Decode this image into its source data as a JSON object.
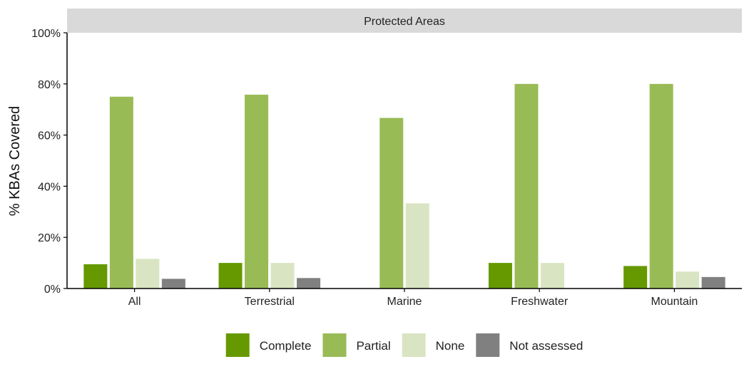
{
  "chart_data": {
    "type": "bar",
    "facet_title": "Protected Areas",
    "ylabel": "% KBAs Covered",
    "xlabel": "",
    "ylim": [
      0,
      100
    ],
    "y_ticks": [
      "0%",
      "20%",
      "40%",
      "60%",
      "80%",
      "100%"
    ],
    "y_tick_values": [
      0,
      20,
      40,
      60,
      80,
      100
    ],
    "categories": [
      "All",
      "Terrestrial",
      "Marine",
      "Freshwater",
      "Mountain"
    ],
    "series": [
      {
        "name": "Complete",
        "color": "#669900",
        "values": [
          9.5,
          10,
          null,
          10,
          8.8
        ]
      },
      {
        "name": "Partial",
        "color": "#99bb55",
        "values": [
          75,
          75.8,
          66.7,
          80,
          80
        ]
      },
      {
        "name": "None",
        "color": "#d9e5c2",
        "values": [
          11.6,
          10,
          33.3,
          10,
          6.6
        ]
      },
      {
        "name": "Not assessed",
        "color": "#808080",
        "values": [
          3.8,
          4.1,
          null,
          null,
          4.5
        ]
      }
    ],
    "legend_position": "bottom",
    "grid": false
  }
}
